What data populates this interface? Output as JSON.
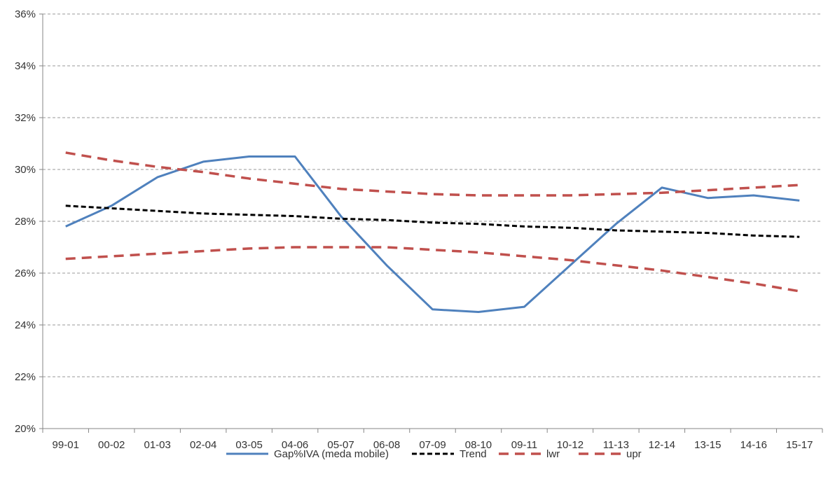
{
  "chart_data": {
    "type": "line",
    "title": "",
    "xlabel": "",
    "ylabel": "",
    "categories": [
      "99-01",
      "00-02",
      "01-03",
      "02-04",
      "03-05",
      "04-06",
      "05-07",
      "06-08",
      "07-09",
      "08-10",
      "09-11",
      "10-12",
      "11-13",
      "12-14",
      "13-15",
      "14-16",
      "15-17"
    ],
    "ylim": [
      20,
      36
    ],
    "yticks": [
      20,
      22,
      24,
      26,
      28,
      30,
      32,
      34,
      36
    ],
    "ytick_labels": [
      "20%",
      "22%",
      "24%",
      "26%",
      "28%",
      "30%",
      "32%",
      "34%",
      "36%"
    ],
    "grid": "horizontal-dashed",
    "legend_position": "bottom",
    "series": [
      {
        "name": "Gap%IVA (meda mobile)",
        "style": "solid",
        "color": "#4F81BD",
        "values": [
          27.8,
          28.6,
          29.7,
          30.3,
          30.5,
          30.5,
          28.2,
          26.3,
          24.6,
          24.5,
          24.7,
          26.3,
          27.9,
          29.3,
          28.9,
          29.0,
          28.8
        ]
      },
      {
        "name": "Trend",
        "style": "dashed",
        "color": "#000000",
        "values": [
          28.6,
          28.5,
          28.4,
          28.3,
          28.25,
          28.2,
          28.1,
          28.05,
          27.95,
          27.9,
          27.8,
          27.75,
          27.65,
          27.6,
          27.55,
          27.45,
          27.4
        ]
      },
      {
        "name": "lwr",
        "style": "dashed",
        "color": "#C0504D",
        "values": [
          26.55,
          26.65,
          26.75,
          26.85,
          26.95,
          27.0,
          27.0,
          27.0,
          26.9,
          26.8,
          26.65,
          26.5,
          26.3,
          26.1,
          25.85,
          25.6,
          25.3
        ]
      },
      {
        "name": "upr",
        "style": "dashed",
        "color": "#C0504D",
        "values": [
          30.65,
          30.35,
          30.1,
          29.9,
          29.65,
          29.45,
          29.25,
          29.15,
          29.05,
          29.0,
          29.0,
          29.0,
          29.05,
          29.1,
          29.2,
          29.3,
          29.4
        ]
      }
    ]
  }
}
